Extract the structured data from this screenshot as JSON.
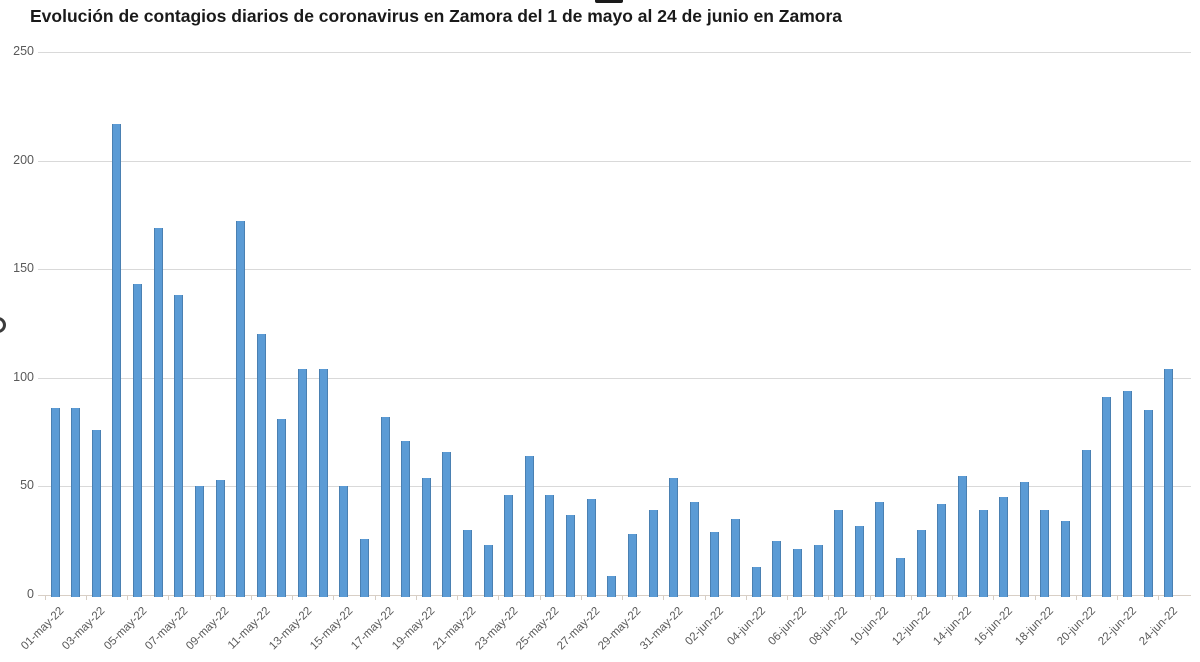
{
  "chart_data": {
    "type": "bar",
    "title": "Evolución de contagios diarios de coronavirus en Zamora del 1 de mayo al 24 de junio en Zamora",
    "xlabel": "",
    "ylabel": "",
    "ylim": [
      0,
      250
    ],
    "grid": true,
    "legend": false,
    "bar_color": "#5b9bd5",
    "bar_border_color": "#4a80b2",
    "gridline_color": "#d9d9d9",
    "axis_line_color": "#d8cfc6",
    "tick_label_color": "#595959",
    "title_color": "#1a1a1a",
    "y_ticks": [
      0,
      50,
      100,
      150,
      200,
      250
    ],
    "x_tick_labels": [
      "01-may-22",
      "03-may-22",
      "05-may-22",
      "07-may-22",
      "09-may-22",
      "11-may-22",
      "13-may-22",
      "15-may-22",
      "17-may-22",
      "19-may-22",
      "21-may-22",
      "23-may-22",
      "25-may-22",
      "27-may-22",
      "29-may-22",
      "31-may-22",
      "02-jun-22",
      "04-jun-22",
      "06-jun-22",
      "08-jun-22",
      "10-jun-22",
      "12-jun-22",
      "14-jun-22",
      "16-jun-22",
      "18-jun-22",
      "20-jun-22",
      "22-jun-22",
      "24-jun-22"
    ],
    "categories": [
      "01-may-22",
      "02-may-22",
      "03-may-22",
      "04-may-22",
      "05-may-22",
      "06-may-22",
      "07-may-22",
      "08-may-22",
      "09-may-22",
      "10-may-22",
      "11-may-22",
      "12-may-22",
      "13-may-22",
      "14-may-22",
      "15-may-22",
      "16-may-22",
      "17-may-22",
      "18-may-22",
      "19-may-22",
      "20-may-22",
      "21-may-22",
      "22-may-22",
      "23-may-22",
      "24-may-22",
      "25-may-22",
      "26-may-22",
      "27-may-22",
      "28-may-22",
      "29-may-22",
      "30-may-22",
      "31-may-22",
      "01-jun-22",
      "02-jun-22",
      "03-jun-22",
      "04-jun-22",
      "05-jun-22",
      "06-jun-22",
      "07-jun-22",
      "08-jun-22",
      "09-jun-22",
      "10-jun-22",
      "11-jun-22",
      "12-jun-22",
      "13-jun-22",
      "14-jun-22",
      "15-jun-22",
      "16-jun-22",
      "17-jun-22",
      "18-jun-22",
      "19-jun-22",
      "20-jun-22",
      "21-jun-22",
      "22-jun-22",
      "23-jun-22",
      "24-jun-22"
    ],
    "values": [
      86,
      86,
      76,
      217,
      143,
      169,
      138,
      50,
      53,
      172,
      120,
      81,
      104,
      104,
      50,
      26,
      82,
      71,
      54,
      66,
      30,
      23,
      46,
      64,
      46,
      37,
      44,
      9,
      28,
      39,
      54,
      43,
      29,
      35,
      13,
      25,
      21,
      23,
      39,
      32,
      43,
      17,
      30,
      42,
      55,
      39,
      45,
      52,
      39,
      34,
      67,
      91,
      94,
      85,
      104
    ]
  }
}
